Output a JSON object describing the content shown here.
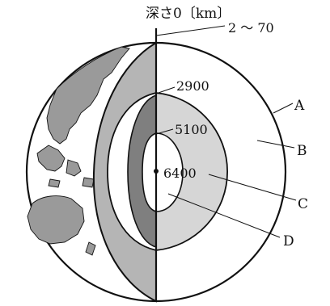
{
  "labels": {
    "depth_title": "深さ0〔km〕",
    "depth_crust": "2 ～ 70",
    "depth_mantle": "2900",
    "depth_outer_core": "5100",
    "depth_center": "6400",
    "layer_a": "A",
    "layer_b": "B",
    "layer_c": "C",
    "layer_d": "D"
  },
  "colors": {
    "outline": "#111111",
    "mantle_section": "#b5b5b5",
    "outer_core_section": "#7f7f7f",
    "outer_core_face": "#d6d6d6",
    "inner_core_face": "#ffffff",
    "continents": "#9a9a9a",
    "ocean": "#ffffff"
  }
}
